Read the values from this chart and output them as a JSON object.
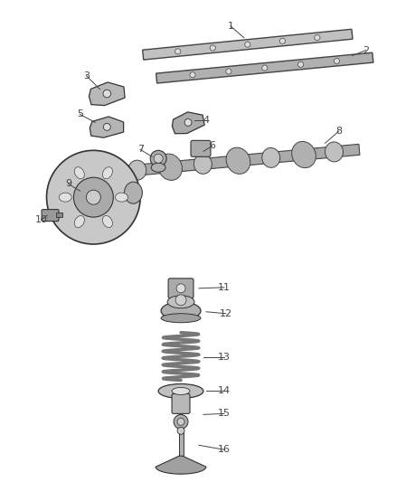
{
  "background_color": "#ffffff",
  "line_color": "#444444",
  "label_color": "#444444",
  "label_fontsize": 8,
  "part_gray": "#888888",
  "part_light": "#bbbbbb",
  "part_dark": "#666666",
  "part_edge": "#333333"
}
